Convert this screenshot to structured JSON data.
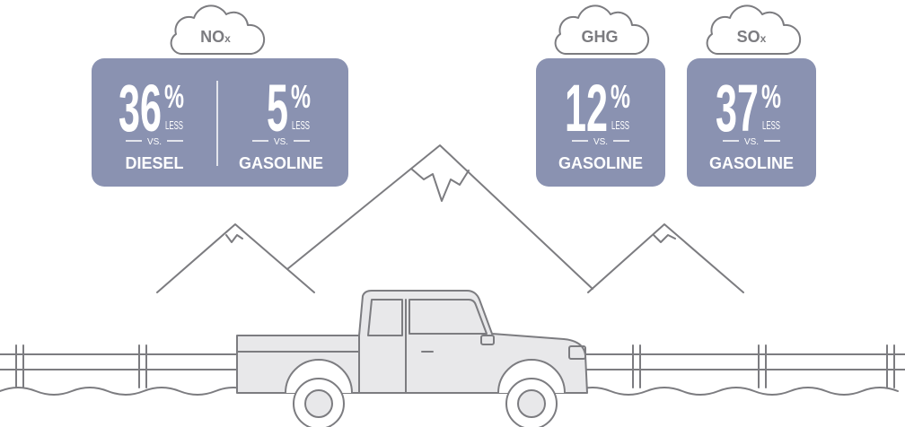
{
  "groups": [
    {
      "label": "NO",
      "label_sub": "x",
      "stats": [
        {
          "value": 36,
          "unit": "%",
          "qualifier": "LESS",
          "vs": "VS.",
          "against": "DIESEL"
        },
        {
          "value": 5,
          "unit": "%",
          "qualifier": "LESS",
          "vs": "VS.",
          "against": "GASOLINE"
        }
      ]
    },
    {
      "label": "GHG",
      "stats": [
        {
          "value": 12,
          "unit": "%",
          "qualifier": "LESS",
          "vs": "VS.",
          "against": "GASOLINE"
        }
      ]
    },
    {
      "label": "SO",
      "label_sub": "x",
      "stats": [
        {
          "value": 37,
          "unit": "%",
          "qualifier": "LESS",
          "vs": "VS.",
          "against": "GASOLINE"
        }
      ]
    }
  ]
}
